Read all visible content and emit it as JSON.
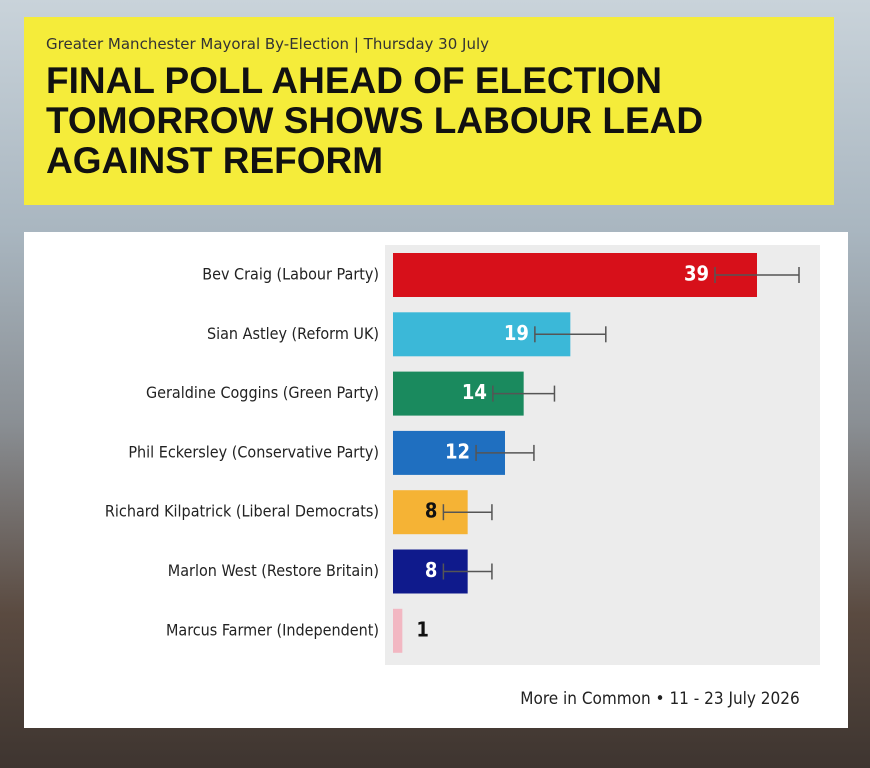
{
  "chart_data": {
    "type": "bar",
    "orientation": "horizontal",
    "subtitle": "Greater Manchester Mayoral By-Election | Thursday 30 July",
    "title": "FINAL POLL AHEAD OF ELECTION TOMORROW SHOWS LABOUR LEAD AGAINST REFORM",
    "categories": [
      "Bev Craig (Labour Party)",
      "Sian Astley (Reform UK)",
      "Geraldine Coggins (Green Party)",
      "Phil Eckersley (Conservative Party)",
      "Richard Kilpatrick (Liberal Democrats)",
      "Marlon West (Restore Britain)",
      "Marcus Farmer (Independent)"
    ],
    "values": [
      39,
      19,
      14,
      12,
      8,
      8,
      1
    ],
    "errors": [
      4.5,
      3.8,
      3.3,
      3.1,
      2.6,
      2.6,
      null
    ],
    "colors": [
      "#d7101a",
      "#3bb8d8",
      "#1a8a5e",
      "#1f6fc0",
      "#f5b335",
      "#0f1a8c",
      "#f2b7c2"
    ],
    "source": "More in Common • 11 - 23 July 2026"
  }
}
